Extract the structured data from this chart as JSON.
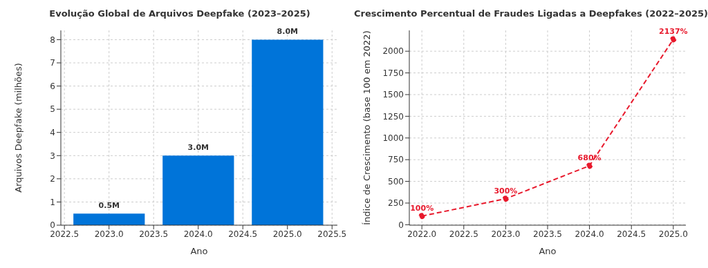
{
  "chart_data": [
    {
      "type": "bar",
      "title": "Evolução Global de Arquivos Deepfake (2023–2025)",
      "xlabel": "Ano",
      "ylabel": "Arquivos Deepfake (milhões)",
      "x": [
        2023,
        2024,
        2025
      ],
      "values": [
        0.5,
        3.0,
        8.0
      ],
      "value_labels": [
        "0.5M",
        "3.0M",
        "8.0M"
      ],
      "color": "#0074d9",
      "xlim": [
        2022.46,
        2025.56
      ],
      "xticks": [
        {
          "value": 2022.5,
          "label": "2022.5"
        },
        {
          "value": 2023,
          "label": "2023.0"
        },
        {
          "value": 2023.5,
          "label": "2023.5"
        },
        {
          "value": 2024,
          "label": "2024.0"
        },
        {
          "value": 2024.5,
          "label": "2024.5"
        },
        {
          "value": 2025,
          "label": "2025.0"
        },
        {
          "value": 2025.5,
          "label": "2025.5"
        }
      ],
      "ylim": [
        0,
        8.4
      ],
      "yticks": [
        0,
        1,
        2,
        3,
        4,
        5,
        6,
        7,
        8
      ],
      "grid": true
    },
    {
      "type": "line",
      "title": "Crescimento Percentual de Fraudes Ligadas a Deepfakes (2022–2025)",
      "xlabel": "Ano",
      "ylabel": "Índice de Crescimento (base 100 em 2022)",
      "x": [
        2022,
        2023,
        2024,
        2025
      ],
      "values": [
        100,
        300,
        680,
        2137
      ],
      "value_labels": [
        "100%",
        "300%",
        "680%",
        "2137%"
      ],
      "color": "#e8192c",
      "marker": "circle",
      "line_style": "dashed",
      "xlim": [
        2021.85,
        2025.15
      ],
      "xticks": [
        {
          "value": 2022,
          "label": "2022.0"
        },
        {
          "value": 2022.5,
          "label": "2022.5"
        },
        {
          "value": 2023,
          "label": "2023.0"
        },
        {
          "value": 2023.5,
          "label": "2023.5"
        },
        {
          "value": 2024,
          "label": "2024.0"
        },
        {
          "value": 2024.5,
          "label": "2024.5"
        },
        {
          "value": 2025,
          "label": "2025.0"
        }
      ],
      "ylim": [
        -5,
        2240
      ],
      "yticks": [
        0,
        250,
        500,
        750,
        1000,
        1250,
        1500,
        1750,
        2000
      ],
      "grid": true
    }
  ]
}
